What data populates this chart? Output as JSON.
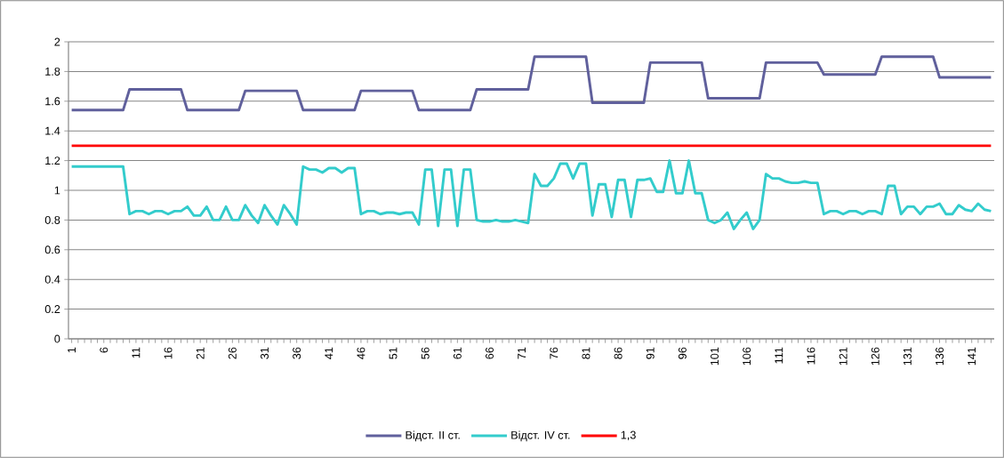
{
  "chart_data": {
    "type": "line",
    "categories": [
      "1",
      null,
      null,
      null,
      null,
      "6",
      null,
      null,
      null,
      null,
      "11",
      null,
      null,
      null,
      null,
      "16",
      null,
      null,
      null,
      null,
      "21",
      null,
      null,
      null,
      null,
      "26",
      null,
      null,
      null,
      null,
      "31",
      null,
      null,
      null,
      null,
      "36",
      null,
      null,
      null,
      null,
      "41",
      null,
      null,
      null,
      null,
      "46",
      null,
      null,
      null,
      null,
      "51",
      null,
      null,
      null,
      null,
      "56",
      null,
      null,
      null,
      null,
      "61",
      null,
      null,
      null,
      null,
      "66",
      null,
      null,
      null,
      null,
      "71",
      null,
      null,
      null,
      null,
      "76",
      null,
      null,
      null,
      null,
      "81",
      null,
      null,
      null,
      null,
      "86",
      null,
      null,
      null,
      null,
      "91",
      null,
      null,
      null,
      null,
      "96",
      null,
      null,
      null,
      null,
      "101",
      null,
      null,
      null,
      null,
      "106",
      null,
      null,
      null,
      null,
      "111",
      null,
      null,
      null,
      null,
      "116",
      null,
      null,
      null,
      null,
      "121",
      null,
      null,
      null,
      null,
      "126",
      null,
      null,
      null,
      null,
      "131",
      null,
      null,
      null,
      null,
      "136",
      null,
      null,
      null,
      null,
      "141",
      null,
      null,
      null
    ],
    "series": [
      {
        "name": "Відст. II ст.",
        "color": "#60609c",
        "values": [
          1.54,
          1.54,
          1.54,
          1.54,
          1.54,
          1.54,
          1.54,
          1.54,
          1.54,
          1.68,
          1.68,
          1.68,
          1.68,
          1.68,
          1.68,
          1.68,
          1.68,
          1.68,
          1.54,
          1.54,
          1.54,
          1.54,
          1.54,
          1.54,
          1.54,
          1.54,
          1.54,
          1.67,
          1.67,
          1.67,
          1.67,
          1.67,
          1.67,
          1.67,
          1.67,
          1.67,
          1.54,
          1.54,
          1.54,
          1.54,
          1.54,
          1.54,
          1.54,
          1.54,
          1.54,
          1.67,
          1.67,
          1.67,
          1.67,
          1.67,
          1.67,
          1.67,
          1.67,
          1.67,
          1.54,
          1.54,
          1.54,
          1.54,
          1.54,
          1.54,
          1.54,
          1.54,
          1.54,
          1.68,
          1.68,
          1.68,
          1.68,
          1.68,
          1.68,
          1.68,
          1.68,
          1.68,
          1.9,
          1.9,
          1.9,
          1.9,
          1.9,
          1.9,
          1.9,
          1.9,
          1.9,
          1.59,
          1.59,
          1.59,
          1.59,
          1.59,
          1.59,
          1.59,
          1.59,
          1.59,
          1.86,
          1.86,
          1.86,
          1.86,
          1.86,
          1.86,
          1.86,
          1.86,
          1.86,
          1.62,
          1.62,
          1.62,
          1.62,
          1.62,
          1.62,
          1.62,
          1.62,
          1.62,
          1.86,
          1.86,
          1.86,
          1.86,
          1.86,
          1.86,
          1.86,
          1.86,
          1.86,
          1.78,
          1.78,
          1.78,
          1.78,
          1.78,
          1.78,
          1.78,
          1.78,
          1.78,
          1.9,
          1.9,
          1.9,
          1.9,
          1.9,
          1.9,
          1.9,
          1.9,
          1.9,
          1.76,
          1.76,
          1.76,
          1.76,
          1.76,
          1.76,
          1.76,
          1.76,
          1.76
        ]
      },
      {
        "name": "Відст. IV ст.",
        "color": "#33cccc",
        "values": [
          1.16,
          1.16,
          1.16,
          1.16,
          1.16,
          1.16,
          1.16,
          1.16,
          1.16,
          0.84,
          0.86,
          0.86,
          0.84,
          0.86,
          0.86,
          0.84,
          0.86,
          0.86,
          0.89,
          0.83,
          0.83,
          0.89,
          0.8,
          0.8,
          0.89,
          0.8,
          0.8,
          0.9,
          0.83,
          0.78,
          0.9,
          0.83,
          0.77,
          0.9,
          0.84,
          0.77,
          1.16,
          1.14,
          1.14,
          1.12,
          1.15,
          1.15,
          1.12,
          1.15,
          1.15,
          0.84,
          0.86,
          0.86,
          0.84,
          0.85,
          0.85,
          0.84,
          0.85,
          0.85,
          0.77,
          1.14,
          1.14,
          0.76,
          1.14,
          1.14,
          0.76,
          1.14,
          1.14,
          0.8,
          0.79,
          0.79,
          0.8,
          0.79,
          0.79,
          0.8,
          0.79,
          0.78,
          1.11,
          1.03,
          1.03,
          1.08,
          1.18,
          1.18,
          1.08,
          1.18,
          1.18,
          0.83,
          1.04,
          1.04,
          0.82,
          1.07,
          1.07,
          0.82,
          1.07,
          1.07,
          1.08,
          0.99,
          0.99,
          1.2,
          0.98,
          0.98,
          1.2,
          0.98,
          0.98,
          0.8,
          0.78,
          0.8,
          0.85,
          0.74,
          0.8,
          0.85,
          0.74,
          0.8,
          1.11,
          1.08,
          1.08,
          1.06,
          1.05,
          1.05,
          1.06,
          1.05,
          1.05,
          0.84,
          0.86,
          0.86,
          0.84,
          0.86,
          0.86,
          0.84,
          0.86,
          0.86,
          0.84,
          1.03,
          1.03,
          0.84,
          0.89,
          0.89,
          0.84,
          0.89,
          0.89,
          0.91,
          0.84,
          0.84,
          0.9,
          0.87,
          0.86,
          0.91,
          0.87,
          0.86
        ]
      },
      {
        "name": "1,3",
        "color": "#ff0000",
        "values": [
          1.3,
          1.3,
          1.3,
          1.3,
          1.3,
          1.3,
          1.3,
          1.3,
          1.3,
          1.3,
          1.3,
          1.3,
          1.3,
          1.3,
          1.3,
          1.3,
          1.3,
          1.3,
          1.3,
          1.3,
          1.3,
          1.3,
          1.3,
          1.3,
          1.3,
          1.3,
          1.3,
          1.3,
          1.3,
          1.3,
          1.3,
          1.3,
          1.3,
          1.3,
          1.3,
          1.3,
          1.3,
          1.3,
          1.3,
          1.3,
          1.3,
          1.3,
          1.3,
          1.3,
          1.3,
          1.3,
          1.3,
          1.3,
          1.3,
          1.3,
          1.3,
          1.3,
          1.3,
          1.3,
          1.3,
          1.3,
          1.3,
          1.3,
          1.3,
          1.3,
          1.3,
          1.3,
          1.3,
          1.3,
          1.3,
          1.3,
          1.3,
          1.3,
          1.3,
          1.3,
          1.3,
          1.3,
          1.3,
          1.3,
          1.3,
          1.3,
          1.3,
          1.3,
          1.3,
          1.3,
          1.3,
          1.3,
          1.3,
          1.3,
          1.3,
          1.3,
          1.3,
          1.3,
          1.3,
          1.3,
          1.3,
          1.3,
          1.3,
          1.3,
          1.3,
          1.3,
          1.3,
          1.3,
          1.3,
          1.3,
          1.3,
          1.3,
          1.3,
          1.3,
          1.3,
          1.3,
          1.3,
          1.3,
          1.3,
          1.3,
          1.3,
          1.3,
          1.3,
          1.3,
          1.3,
          1.3,
          1.3,
          1.3,
          1.3,
          1.3,
          1.3,
          1.3,
          1.3,
          1.3,
          1.3,
          1.3,
          1.3,
          1.3,
          1.3,
          1.3,
          1.3,
          1.3,
          1.3,
          1.3,
          1.3,
          1.3,
          1.3,
          1.3,
          1.3,
          1.3,
          1.3,
          1.3,
          1.3,
          1.3
        ]
      }
    ],
    "ylim": [
      0,
      2
    ],
    "yticks": [
      0,
      0.2,
      0.4,
      0.6,
      0.8,
      1,
      1.2,
      1.4,
      1.6,
      1.8,
      2
    ],
    "grid": "y",
    "legend": "bottom"
  }
}
